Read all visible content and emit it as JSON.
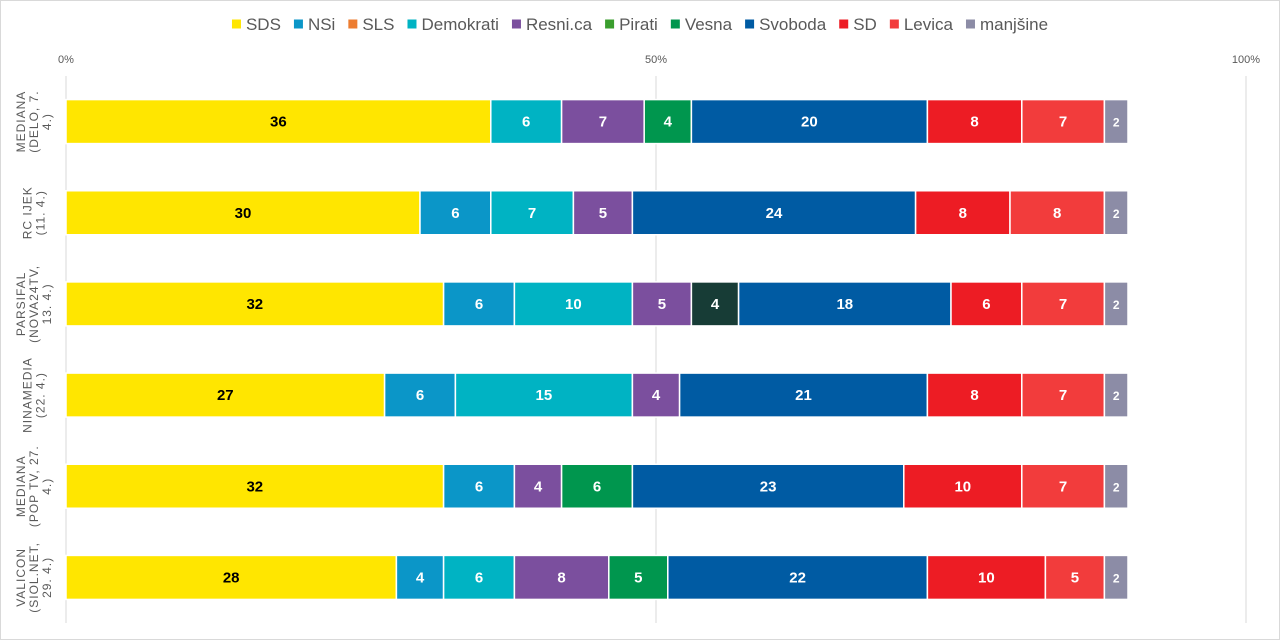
{
  "chart_data": {
    "type": "bar",
    "orientation": "horizontal",
    "stacked": true,
    "xlim": [
      0,
      100
    ],
    "tick_labels": [
      "0%",
      "50%",
      "100%"
    ],
    "legend": {
      "placement": "top"
    },
    "grid": true,
    "categories": [
      "MEDIANA (DELO, 7. 4.)",
      "RC IJEK (11. 4.)",
      "PARSIFAL (NOVA24TV, 13. 4.)",
      "NINAMEDIA (22. 4.)",
      "MEDIANA (POP TV, 27. 4.)",
      "VALICON (SIOL.NET, 29. 4.)"
    ],
    "category_lines": [
      [
        "MEDIANA",
        "(DELO, 7.",
        "4.)"
      ],
      [
        "RC IJEK",
        "(11. 4.)"
      ],
      [
        "PARSIFAL",
        "(NOVA24TV,",
        "13. 4.)"
      ],
      [
        "NINAMEDIA",
        "(22. 4.)"
      ],
      [
        "MEDIANA",
        "(POP TV, 27.",
        "4.)"
      ],
      [
        "VALICON",
        "(SIOL.NET,",
        "29. 4.)"
      ]
    ],
    "series": [
      {
        "name": "SDS",
        "color": "#FFE600",
        "values": [
          36,
          30,
          32,
          27,
          32,
          28
        ]
      },
      {
        "name": "NSi",
        "color": "#0B96C8",
        "values": [
          0,
          6,
          6,
          6,
          6,
          4
        ]
      },
      {
        "name": "SLS",
        "color": "#ED7D31",
        "values": [
          0,
          0,
          0,
          0,
          0,
          0
        ]
      },
      {
        "name": "Demokrati",
        "color": "#00B3C3",
        "values": [
          6,
          7,
          10,
          15,
          0,
          6
        ]
      },
      {
        "name": "Resni.ca",
        "color": "#7B4F9E",
        "values": [
          7,
          5,
          5,
          4,
          4,
          8
        ]
      },
      {
        "name": "Pirati",
        "color": "#3A9E2E",
        "values": [
          0,
          0,
          4,
          0,
          0,
          0
        ]
      },
      {
        "name": "Vesna",
        "color": "#00964E",
        "values": [
          4,
          0,
          0,
          0,
          6,
          5
        ]
      },
      {
        "name": "Svoboda",
        "color": "#005BA3",
        "values": [
          20,
          24,
          18,
          21,
          23,
          22
        ]
      },
      {
        "name": "SD",
        "color": "#ED1C24",
        "values": [
          8,
          8,
          6,
          8,
          10,
          10
        ]
      },
      {
        "name": "Levica",
        "color": "#F23C3C",
        "values": [
          7,
          8,
          7,
          7,
          7,
          5
        ]
      },
      {
        "name": "manjšine",
        "color": "#8C8CA6",
        "values": [
          2,
          2,
          2,
          2,
          2,
          2
        ]
      }
    ],
    "segment_overrides": [
      {
        "row": 2,
        "series": "Pirati",
        "color": "#173C36"
      }
    ],
    "dark_label_series": [
      "SDS"
    ]
  }
}
